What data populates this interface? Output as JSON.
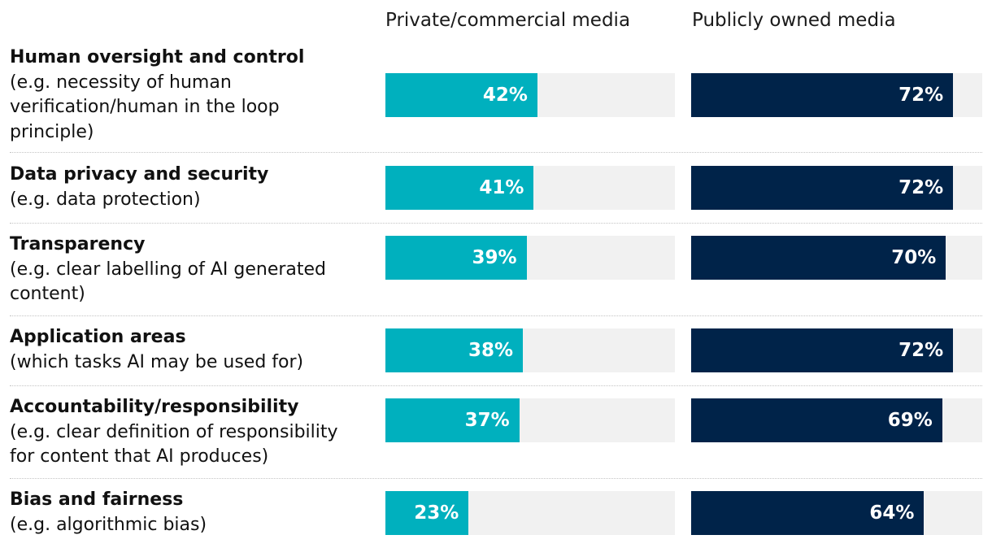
{
  "chart_data": {
    "type": "bar",
    "orientation": "horizontal",
    "categories": [
      {
        "title": "Human oversight and control",
        "description": "(e.g. necessity of human verification/human in the loop principle)"
      },
      {
        "title": "Data privacy and security",
        "description": "(e.g. data protection)"
      },
      {
        "title": "Transparency",
        "description": "(e.g. clear labelling of AI generated content)"
      },
      {
        "title": "Application areas",
        "description": "(which tasks AI may be used for)"
      },
      {
        "title": "Accountability/responsibility",
        "description": "(e.g. clear definition of responsibility for content that AI produces)"
      },
      {
        "title": "Bias and fairness",
        "description": "(e.g. algorithmic bias)"
      }
    ],
    "series": [
      {
        "name": "Private/commercial media",
        "color": "#00b0be",
        "values": [
          42,
          41,
          39,
          38,
          37,
          23
        ]
      },
      {
        "name": "Publicly owned media",
        "color": "#002349",
        "values": [
          72,
          72,
          70,
          72,
          69,
          64
        ]
      }
    ],
    "value_suffix": "%",
    "xlim": [
      0,
      80
    ],
    "track_color": "#f1f1f1"
  }
}
